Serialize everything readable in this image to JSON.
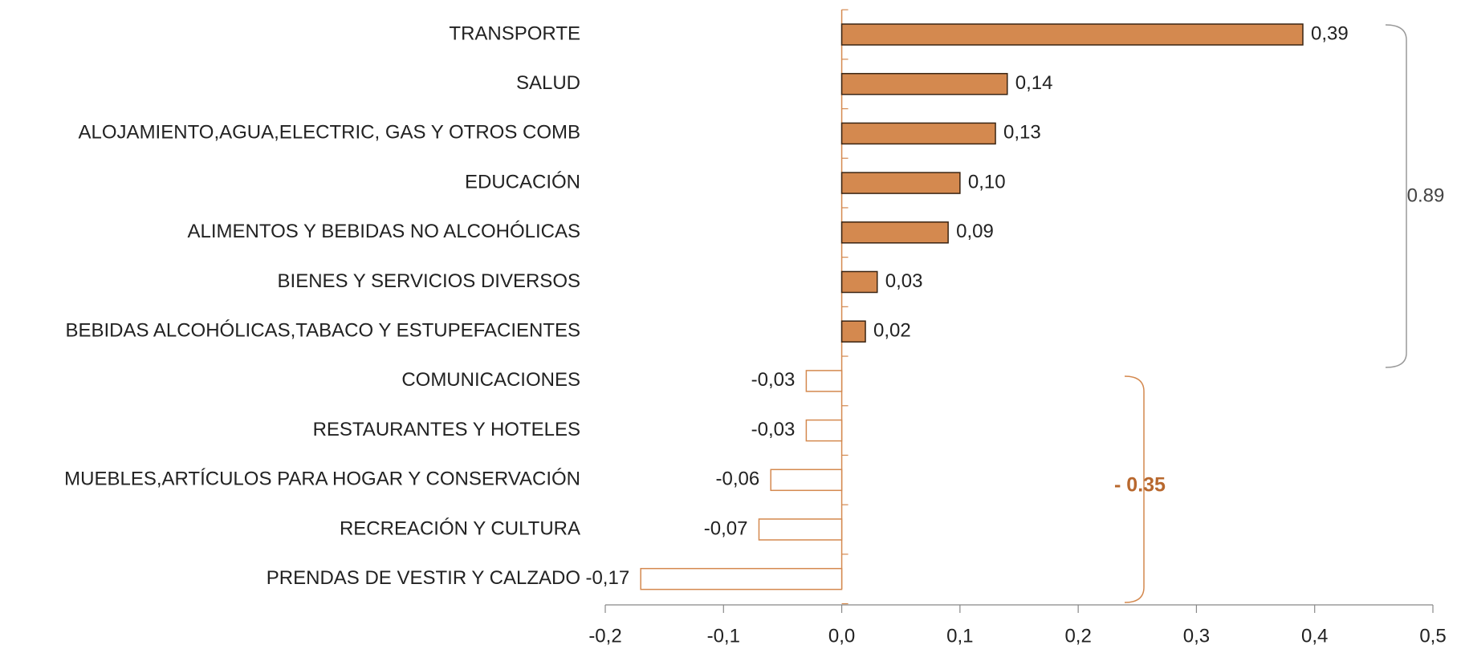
{
  "chart_data": {
    "type": "bar",
    "orientation": "horizontal",
    "categories": [
      "TRANSPORTE",
      "SALUD",
      "ALOJAMIENTO,AGUA,ELECTRIC, GAS Y OTROS COMB",
      "EDUCACIÓN",
      "ALIMENTOS Y BEBIDAS NO ALCOHÓLICAS",
      "BIENES Y SERVICIOS DIVERSOS",
      "BEBIDAS ALCOHÓLICAS,TABACO Y ESTUPEFACIENTES",
      "COMUNICACIONES",
      "RESTAURANTES Y HOTELES",
      "MUEBLES,ARTÍCULOS PARA HOGAR Y CONSERVACIÓN",
      "RECREACIÓN Y CULTURA",
      "PRENDAS DE VESTIR Y CALZADO"
    ],
    "values": [
      0.39,
      0.14,
      0.13,
      0.1,
      0.09,
      0.03,
      0.02,
      -0.03,
      -0.03,
      -0.06,
      -0.07,
      -0.17
    ],
    "value_labels": [
      "0,39",
      "0,14",
      "0,13",
      "0,10",
      "0,09",
      "0,03",
      "0,02",
      "-0,03",
      "-0,03",
      "-0,06",
      "-0,07",
      "-0,17"
    ],
    "positive_color": "#d4894f",
    "negative_color": "#ffffff",
    "accent_color": "#d4894f",
    "xlim": [
      -0.2,
      0.5
    ],
    "xticks": [
      {
        "value": -0.2,
        "label": "-0,2"
      },
      {
        "value": -0.1,
        "label": "-0,1"
      },
      {
        "value": 0.0,
        "label": "0,0"
      },
      {
        "value": 0.1,
        "label": "0,1"
      },
      {
        "value": 0.2,
        "label": "0,2"
      },
      {
        "value": 0.3,
        "label": "0,3"
      },
      {
        "value": 0.4,
        "label": "0,4"
      },
      {
        "value": 0.5,
        "label": "0,5"
      }
    ],
    "annotations": [
      {
        "text": "0.89",
        "color": "#444444"
      },
      {
        "text": "- 0.35",
        "color": "#b8682e"
      }
    ]
  }
}
